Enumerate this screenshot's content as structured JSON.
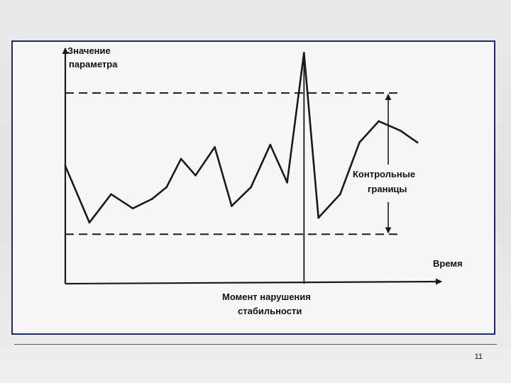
{
  "page_number": "11",
  "chart_data": {
    "type": "line",
    "ylabel_lines": [
      "Значение",
      "параметра"
    ],
    "xlabel": "Время",
    "control_limits_label_lines": [
      "Контрольные",
      "границы"
    ],
    "violation_label_lines": [
      "Момент нарушения",
      "стабильности"
    ],
    "xlim": [
      0,
      15.6
    ],
    "ylim": [
      0,
      10
    ],
    "upper_limit": 8.1,
    "lower_limit": 2.1,
    "violation_x": 9.9,
    "series": [
      {
        "x": [
          0,
          1,
          1.9,
          2.8,
          3.6,
          4.2,
          4.8,
          5.4,
          6.2,
          6.9,
          7.7,
          8.5,
          9.2,
          9.9,
          10.5,
          11.4,
          12.2,
          13.0,
          13.9,
          14.6
        ],
        "y": [
          5.0,
          2.6,
          3.8,
          3.2,
          3.6,
          4.1,
          5.3,
          4.6,
          5.8,
          3.3,
          4.1,
          5.9,
          4.3,
          9.8,
          2.8,
          3.8,
          6.0,
          6.9,
          6.5,
          6.0
        ]
      }
    ],
    "grid": false,
    "legend": "none"
  },
  "colors": {
    "ink": "#1a1a1a",
    "frame": "#1d2a68"
  }
}
